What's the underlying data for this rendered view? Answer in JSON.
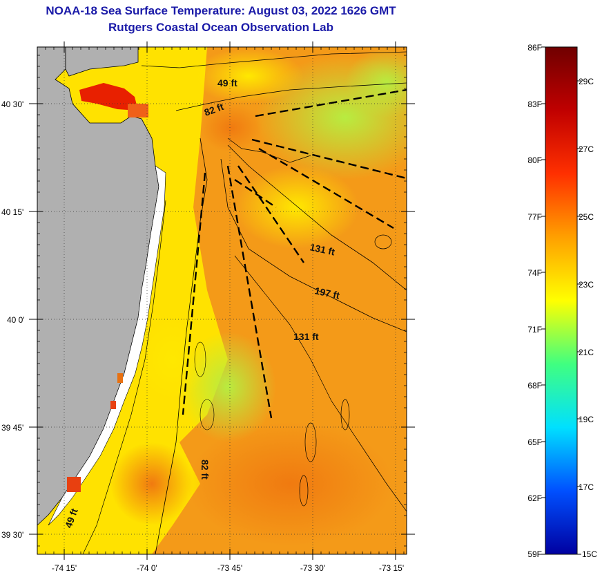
{
  "header": {
    "title_line1": "NOAA-18 Sea Surface Temperature:  August 03, 2022 1626 GMT",
    "title_line2": "Rutgers Coastal Ocean Observation Lab"
  },
  "axes": {
    "lat_ticks": [
      "40 30'",
      "40 15'",
      "40 0'",
      "39 45'",
      "39 30'"
    ],
    "lon_ticks": [
      "-74 15'",
      "-74 0'",
      "-73 45'",
      "-73 30'",
      "-73 15'"
    ]
  },
  "contour_labels": [
    "49 ft",
    "82 ft",
    "131 ft",
    "197 ft",
    "131 ft",
    "82 ft",
    "49 ft"
  ],
  "colorbar": {
    "fahrenheit": [
      "86F",
      "83F",
      "80F",
      "77F",
      "74F",
      "71F",
      "68F",
      "65F",
      "62F",
      "59F"
    ],
    "celsius": [
      "29C",
      "27C",
      "25C",
      "23C",
      "21C",
      "19C",
      "17C",
      "15C"
    ],
    "stops": [
      "#0000a0",
      "#0050ff",
      "#00e0ff",
      "#40ff80",
      "#ffff00",
      "#ffa000",
      "#ff3000",
      "#c00000",
      "#700000"
    ]
  },
  "colors": {
    "land": "#b0b0b0",
    "title": "#1a1aa8",
    "sst_warm": "#f08a10",
    "sst_mid": "#ffe000",
    "sst_cool": "#b8ec40"
  }
}
